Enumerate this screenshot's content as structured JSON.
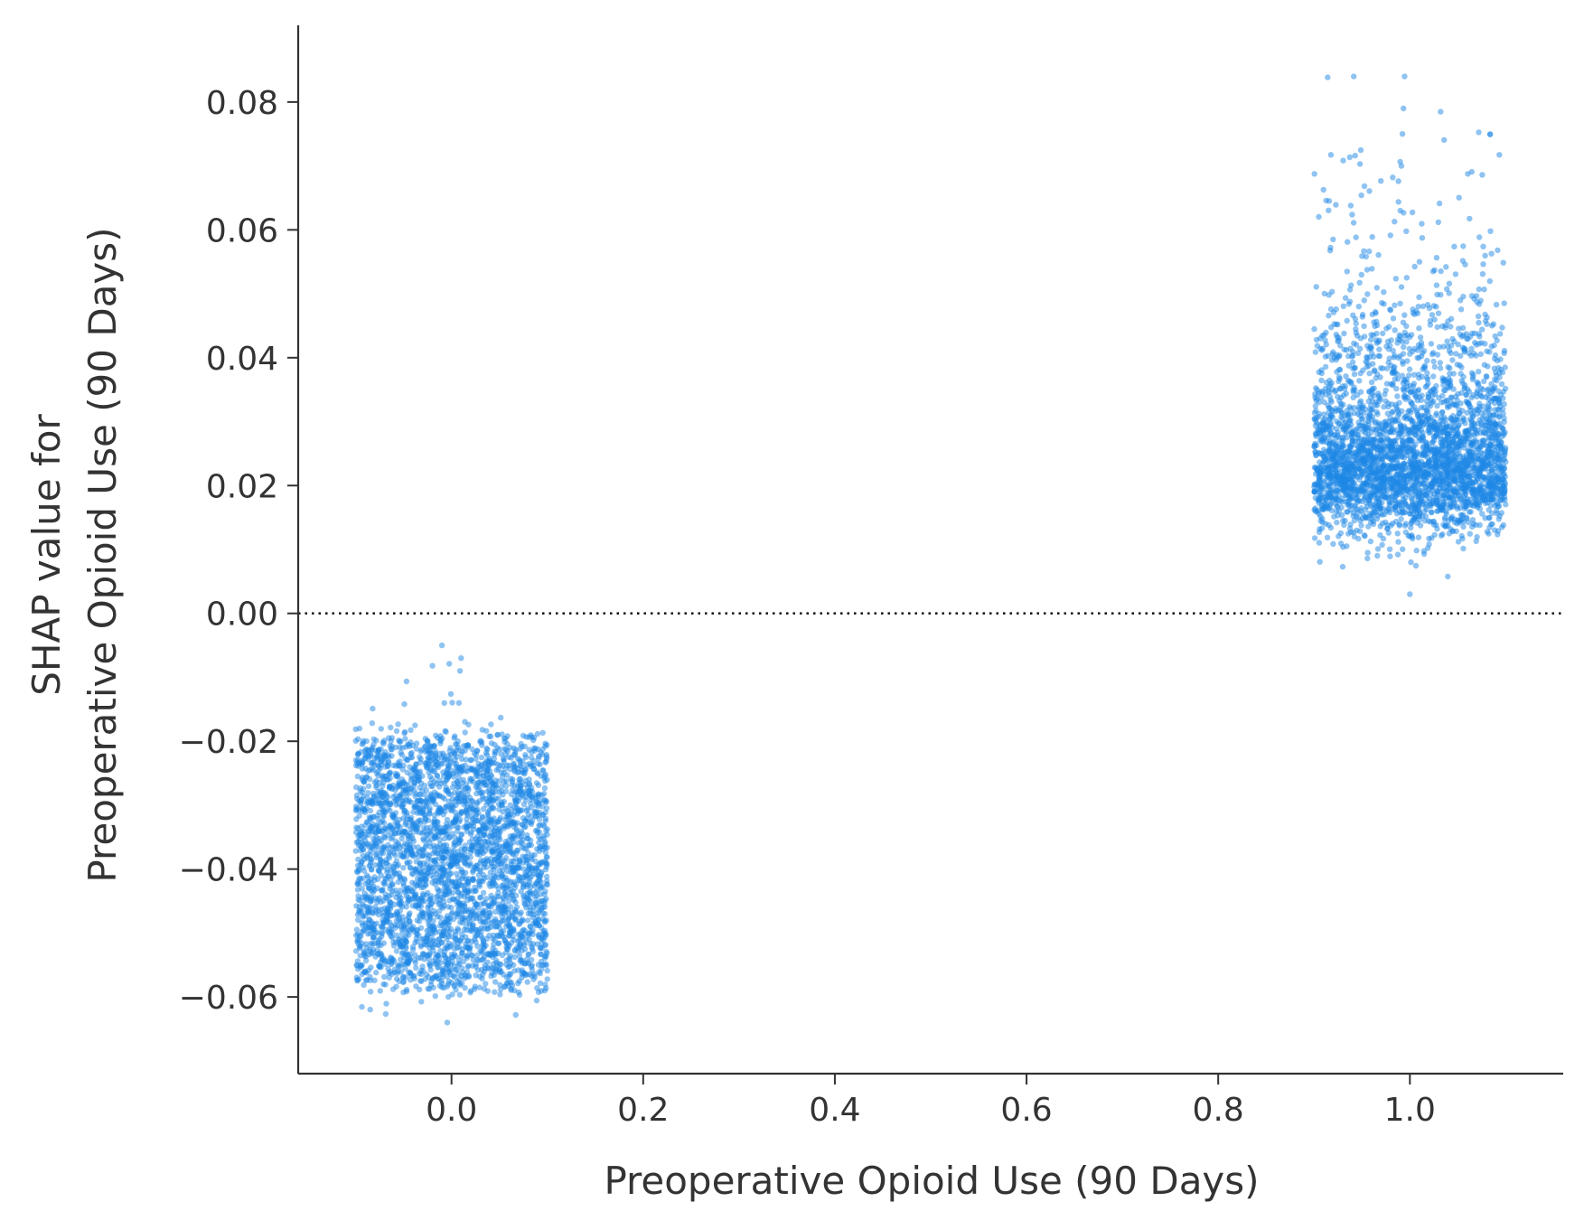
{
  "chart_data": {
    "type": "scatter",
    "title": "",
    "xlabel": "Preoperative Opioid Use (90 Days)",
    "ylabel": [
      "SHAP value for",
      "Preoperative Opioid Use (90 Days)"
    ],
    "xlim": [
      -0.16,
      1.16
    ],
    "ylim": [
      -0.072,
      0.092
    ],
    "x_ticks": [
      0.0,
      0.2,
      0.4,
      0.6,
      0.8,
      1.0
    ],
    "x_tick_labels": [
      "0.0",
      "0.2",
      "0.4",
      "0.6",
      "0.8",
      "1.0"
    ],
    "y_ticks": [
      0.08,
      0.06,
      0.04,
      0.02,
      0.0,
      -0.02,
      -0.04,
      -0.06
    ],
    "y_tick_labels": [
      "0.08",
      "0.06",
      "0.04",
      "0.02",
      "0.00",
      "−0.02",
      "−0.04",
      "−0.06"
    ],
    "reference_line": {
      "y": 0.0,
      "style": "dotted",
      "color": "#000000"
    },
    "grid": false,
    "legend": "none",
    "marker_color": "#1e88e5",
    "clusters": [
      {
        "x_center": 0.0,
        "x_jitter": 0.1,
        "y_center": -0.038,
        "y_core_range": [
          -0.058,
          -0.02
        ],
        "y_extremes": [
          -0.064,
          -0.005
        ],
        "points_shown": "approximately 3500"
      },
      {
        "x_center": 1.0,
        "x_jitter": 0.1,
        "y_center": 0.022,
        "y_core_range": [
          0.012,
          0.035
        ],
        "y_extremes": [
          0.003,
          0.084
        ],
        "points_shown": "approximately 3500"
      }
    ],
    "series": [
      {
        "x": [
          0.0,
          0.0,
          0.0,
          0.0,
          0.0,
          0.0,
          0.0,
          0.0,
          0.0,
          0.0,
          0.0,
          0.0,
          0.0,
          0.0,
          0.0,
          1.0,
          1.0,
          1.0,
          1.0,
          1.0,
          1.0,
          1.0,
          1.0,
          1.0,
          1.0,
          1.0,
          1.0,
          1.0,
          1.0,
          1.0
        ],
        "y": [
          -0.005,
          -0.007,
          -0.009,
          -0.014,
          -0.02,
          -0.025,
          -0.03,
          -0.035,
          -0.038,
          -0.042,
          -0.047,
          -0.052,
          -0.056,
          -0.06,
          -0.064,
          0.084,
          0.079,
          0.075,
          0.07,
          0.063,
          0.055,
          0.048,
          0.04,
          0.034,
          0.028,
          0.022,
          0.017,
          0.012,
          0.008,
          0.003
        ]
      }
    ]
  }
}
